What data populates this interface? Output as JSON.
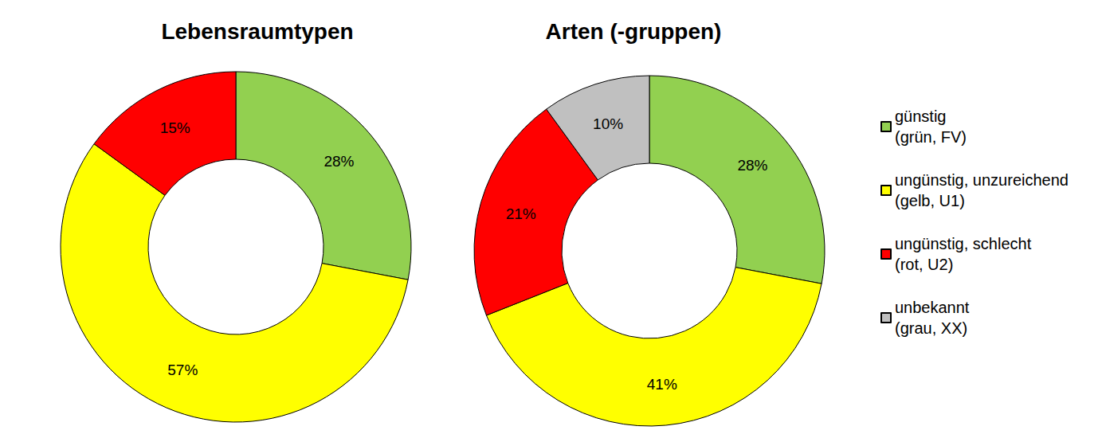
{
  "chart_data": [
    {
      "type": "pie",
      "title": "Lebensraumtypen",
      "categories": [
        "günstig\n(grün, FV)",
        "ungünstig, unzureichend\n(gelb, U1)",
        "ungünstig, schlecht\n(rot, U2)"
      ],
      "values": [
        28,
        57,
        15
      ],
      "value_labels": [
        "28%",
        "57%",
        "15%"
      ],
      "colors": [
        "#92d050",
        "#ffff00",
        "#ff0000"
      ],
      "data_labels": true,
      "legend": "right"
    },
    {
      "type": "pie",
      "title": "Arten (-gruppen)",
      "categories": [
        "günstig\n(grün, FV)",
        "ungünstig, unzureichend\n(gelb, U1)",
        "ungünstig, schlecht\n(rot, U2)",
        "unbekannt\n(grau, XX)"
      ],
      "values": [
        28,
        41,
        21,
        10
      ],
      "value_labels": [
        "28%",
        "41%",
        "21%",
        "10%"
      ],
      "colors": [
        "#92d050",
        "#ffff00",
        "#ff0000",
        "#c0c0c0"
      ],
      "data_labels": true,
      "legend": "right"
    }
  ]
}
